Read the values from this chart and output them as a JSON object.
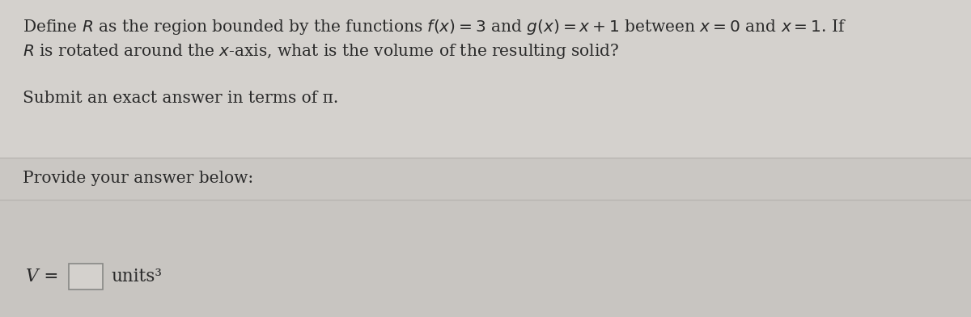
{
  "background_color": "#d4d1cd",
  "section1_bg": "#d4d1cd",
  "section2_bg": "#cac7c3",
  "section3_bg": "#c8c5c1",
  "line1": "Define $R$ as the region bounded by the functions $f(x) = 3$ and $g(x) = x + 1$ between $x = 0$ and $x = 1$. If",
  "line2": "$R$ is rotated around the $x$-axis, what is the volume of the resulting solid?",
  "line3": "Submit an exact answer in terms of π.",
  "line4": "Provide your answer below:",
  "v_label": "V =",
  "units_label": "units³",
  "text_color": "#2a2a2a",
  "divider_color": "#b8b5b1",
  "box_edge_color": "#888885",
  "box_fill_color": "#d4d1cd",
  "font_size_main": 14.5,
  "font_size_answer": 15.5
}
